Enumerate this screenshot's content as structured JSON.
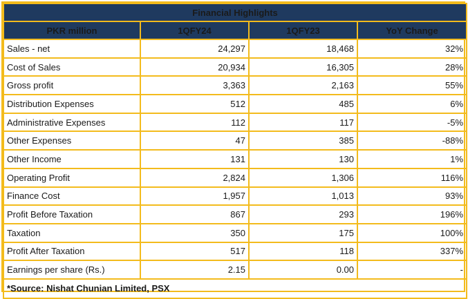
{
  "table": {
    "title": "Financial Highlights",
    "headers": [
      "PKR million",
      "1QFY24",
      "1QFY23",
      "YoY Change"
    ],
    "rows": [
      {
        "label": "Sales - net",
        "fy24": "24,297",
        "fy23": "18,468",
        "yoy": "32%"
      },
      {
        "label": "Cost of Sales",
        "fy24": "20,934",
        "fy23": "16,305",
        "yoy": "28%"
      },
      {
        "label": "Gross profit",
        "fy24": "3,363",
        "fy23": "2,163",
        "yoy": "55%"
      },
      {
        "label": "Distribution Expenses",
        "fy24": "512",
        "fy23": "485",
        "yoy": "6%"
      },
      {
        "label": "Administrative Expenses",
        "fy24": "112",
        "fy23": "117",
        "yoy": "-5%"
      },
      {
        "label": "Other Expenses",
        "fy24": "47",
        "fy23": "385",
        "yoy": "-88%"
      },
      {
        "label": "Other Income",
        "fy24": "131",
        "fy23": "130",
        "yoy": "1%"
      },
      {
        "label": "Operating Profit",
        "fy24": "2,824",
        "fy23": "1,306",
        "yoy": "116%"
      },
      {
        "label": "Finance Cost",
        "fy24": "1,957",
        "fy23": "1,013",
        "yoy": "93%"
      },
      {
        "label": "Profit Before Taxation",
        "fy24": "867",
        "fy23": "293",
        "yoy": "196%"
      },
      {
        "label": "Taxation",
        "fy24": "350",
        "fy23": "175",
        "yoy": "100%"
      },
      {
        "label": "Profit After Taxation",
        "fy24": "517",
        "fy23": "118",
        "yoy": "337%"
      },
      {
        "label": "Earnings per share (Rs.)",
        "fy24": "2.15",
        "fy23": "0.00",
        "yoy": "-"
      }
    ],
    "source": "*Source: Nishat Chunian Limited, PSX"
  },
  "colors": {
    "header_bg": "#1f3a5f",
    "border": "#f3bb1c"
  }
}
